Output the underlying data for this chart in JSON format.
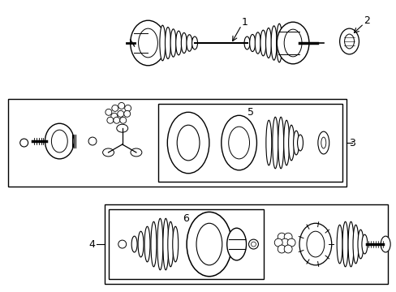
{
  "bg_color": "#ffffff",
  "line_color": "#000000",
  "figure_width": 4.89,
  "figure_height": 3.6,
  "dpi": 100
}
